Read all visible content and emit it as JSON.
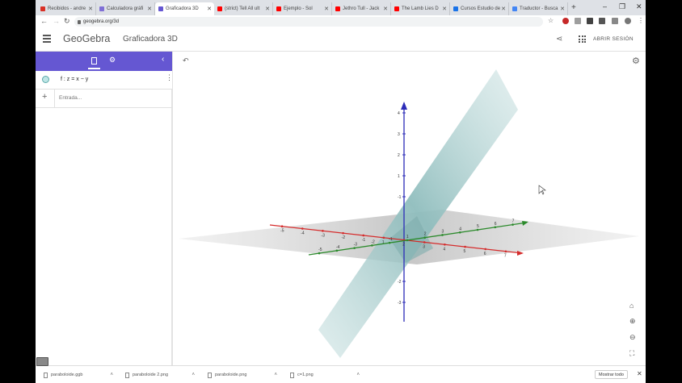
{
  "browser": {
    "tabs": [
      {
        "label": "Recibidos - andre",
        "fav": "#d93025"
      },
      {
        "label": "Calculadora gráfi",
        "fav": "#7f6fd6"
      },
      {
        "label": "Graficadora 3D",
        "fav": "#6557d2",
        "active": true
      },
      {
        "label": "(strict) Tell All ult",
        "fav": "#ff0000"
      },
      {
        "label": "Ejemplo - Sol",
        "fav": "#ff0000"
      },
      {
        "label": "Jethro Tull - Jack",
        "fav": "#ff0000"
      },
      {
        "label": "The Lamb Lies D",
        "fav": "#ff0000"
      },
      {
        "label": "Cursos Estudio de",
        "fav": "#1a73e8"
      },
      {
        "label": "Traductor - Busca",
        "fav": "#4285f4"
      }
    ],
    "url": "geogebra.org/3d",
    "window_controls": {
      "minimize": "–",
      "maximize": "❐",
      "close": "✕"
    }
  },
  "app": {
    "logo": "GeoGebra",
    "title": "Graficadora 3D",
    "signin": "ABRIR SESIÓN"
  },
  "algebra": {
    "objects": [
      {
        "label": "f : z = x − y",
        "color": "#bfe6e6"
      }
    ],
    "input_placeholder": "Entrada..."
  },
  "graphics": {
    "z_ticks": [
      "4",
      "3",
      "2",
      "1",
      "-1",
      "-2",
      "-3"
    ],
    "x_ticks": [
      "-5",
      "-4",
      "-3",
      "-2",
      "-1",
      "1",
      "2",
      "3",
      "4",
      "5",
      "6",
      "7"
    ],
    "y_ticks": [
      "-5",
      "-4",
      "-3",
      "-2",
      "-1",
      "1",
      "2",
      "3",
      "4",
      "5",
      "6",
      "7"
    ],
    "axis_colors": {
      "x": "#d52b2b",
      "y": "#2b8a2b",
      "z": "#2c2cb8"
    },
    "plane_color": "#9bc8c8"
  },
  "downloads": {
    "items": [
      "paraboloide.ggb",
      "paraboloide 2.png",
      "paraboloide.png",
      "c=1.png"
    ],
    "show_all": "Mostrar todo"
  }
}
